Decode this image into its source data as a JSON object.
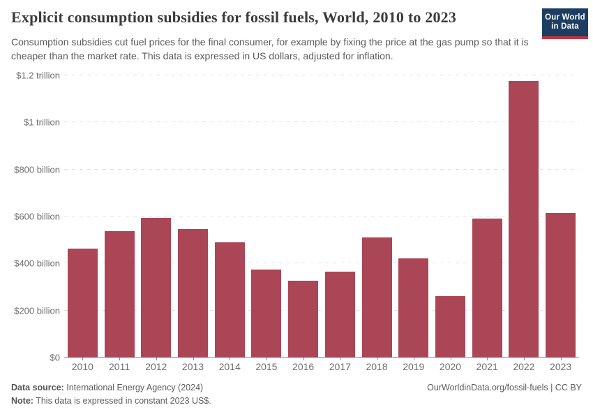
{
  "header": {
    "title": "Explicit consumption subsidies for fossil fuels, World, 2010 to 2023",
    "subtitle": "Consumption subsidies cut fuel prices for the final consumer, for example by fixing the price at the gas pump so that it is cheaper than the market rate. This data is expressed in US dollars, adjusted for inflation.",
    "logo": {
      "line1": "Our World",
      "line2": "in Data"
    }
  },
  "chart_data": {
    "type": "bar",
    "title": "Explicit consumption subsidies for fossil fuels, World, 2010 to 2023",
    "unit": "billion constant 2023 US$",
    "categories": [
      "2010",
      "2011",
      "2012",
      "2013",
      "2014",
      "2015",
      "2016",
      "2017",
      "2018",
      "2019",
      "2020",
      "2021",
      "2022",
      "2023"
    ],
    "values": [
      464,
      537,
      595,
      546,
      489,
      373,
      326,
      366,
      512,
      422,
      262,
      590,
      1175,
      616
    ],
    "ylim": [
      0,
      1200
    ],
    "y_ticks": [
      {
        "value": 0,
        "label": "$0"
      },
      {
        "value": 200,
        "label": "$200 billion"
      },
      {
        "value": 400,
        "label": "$400 billion"
      },
      {
        "value": 600,
        "label": "$600 billion"
      },
      {
        "value": 800,
        "label": "$800 billion"
      },
      {
        "value": 1000,
        "label": "$1 trillion"
      },
      {
        "value": 1200,
        "label": "$1.2 trillion"
      }
    ],
    "grid": "horizontal-dashed",
    "legend": "none",
    "bar_color": "#ab4656",
    "gridline_color": "#e0e0e0",
    "axis_color": "#8f8f8f"
  },
  "footer": {
    "source_label": "Data source:",
    "source_text": "International Energy Agency (2024)",
    "note_label": "Note:",
    "note_text": "This data is expressed in constant 2023 US$.",
    "link": "OurWorldinData.org/fossil-fuels | CC BY"
  }
}
